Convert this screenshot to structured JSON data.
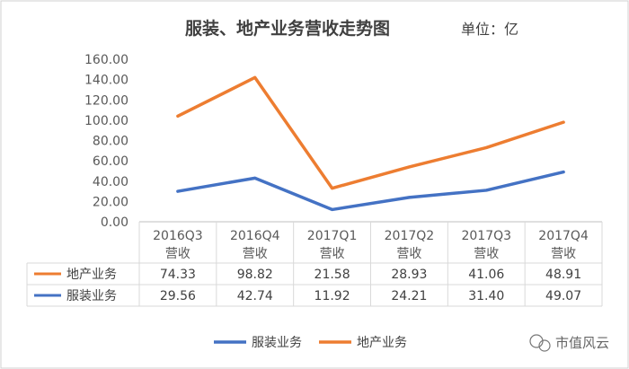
{
  "chart_data": {
    "type": "line",
    "title": "服装、地产业务营收走势图",
    "unit_label": "单位：亿",
    "categories": [
      [
        "2016Q3",
        "营收"
      ],
      [
        "2016Q4",
        "营收"
      ],
      [
        "2017Q1",
        "营收"
      ],
      [
        "2017Q2",
        "营收"
      ],
      [
        "2017Q3",
        "营收"
      ],
      [
        "2017Q4",
        "营收"
      ]
    ],
    "y_ticks": [
      "0.00",
      "20.00",
      "40.00",
      "60.00",
      "80.00",
      "100.00",
      "120.00",
      "140.00",
      "160.00"
    ],
    "ylim": [
      0,
      160
    ],
    "grid": false,
    "legend_position": "bottom",
    "series": [
      {
        "name": "地产业务",
        "color": "#ED7D31",
        "plotted_values": [
          104,
          142,
          33,
          54,
          73,
          98
        ],
        "table_values": [
          "74.33",
          "98.82",
          "21.58",
          "28.93",
          "41.06",
          "48.91"
        ]
      },
      {
        "name": "服装业务",
        "color": "#4472C4",
        "plotted_values": [
          30,
          43,
          12,
          24,
          31,
          49
        ],
        "table_values": [
          "29.56",
          "42.74",
          "11.92",
          "24.21",
          "31.40",
          "49.07"
        ]
      }
    ],
    "legend_order": [
      "服装业务",
      "地产业务"
    ]
  },
  "watermark": {
    "text": "市值风云",
    "icon": "wechat-icon"
  }
}
